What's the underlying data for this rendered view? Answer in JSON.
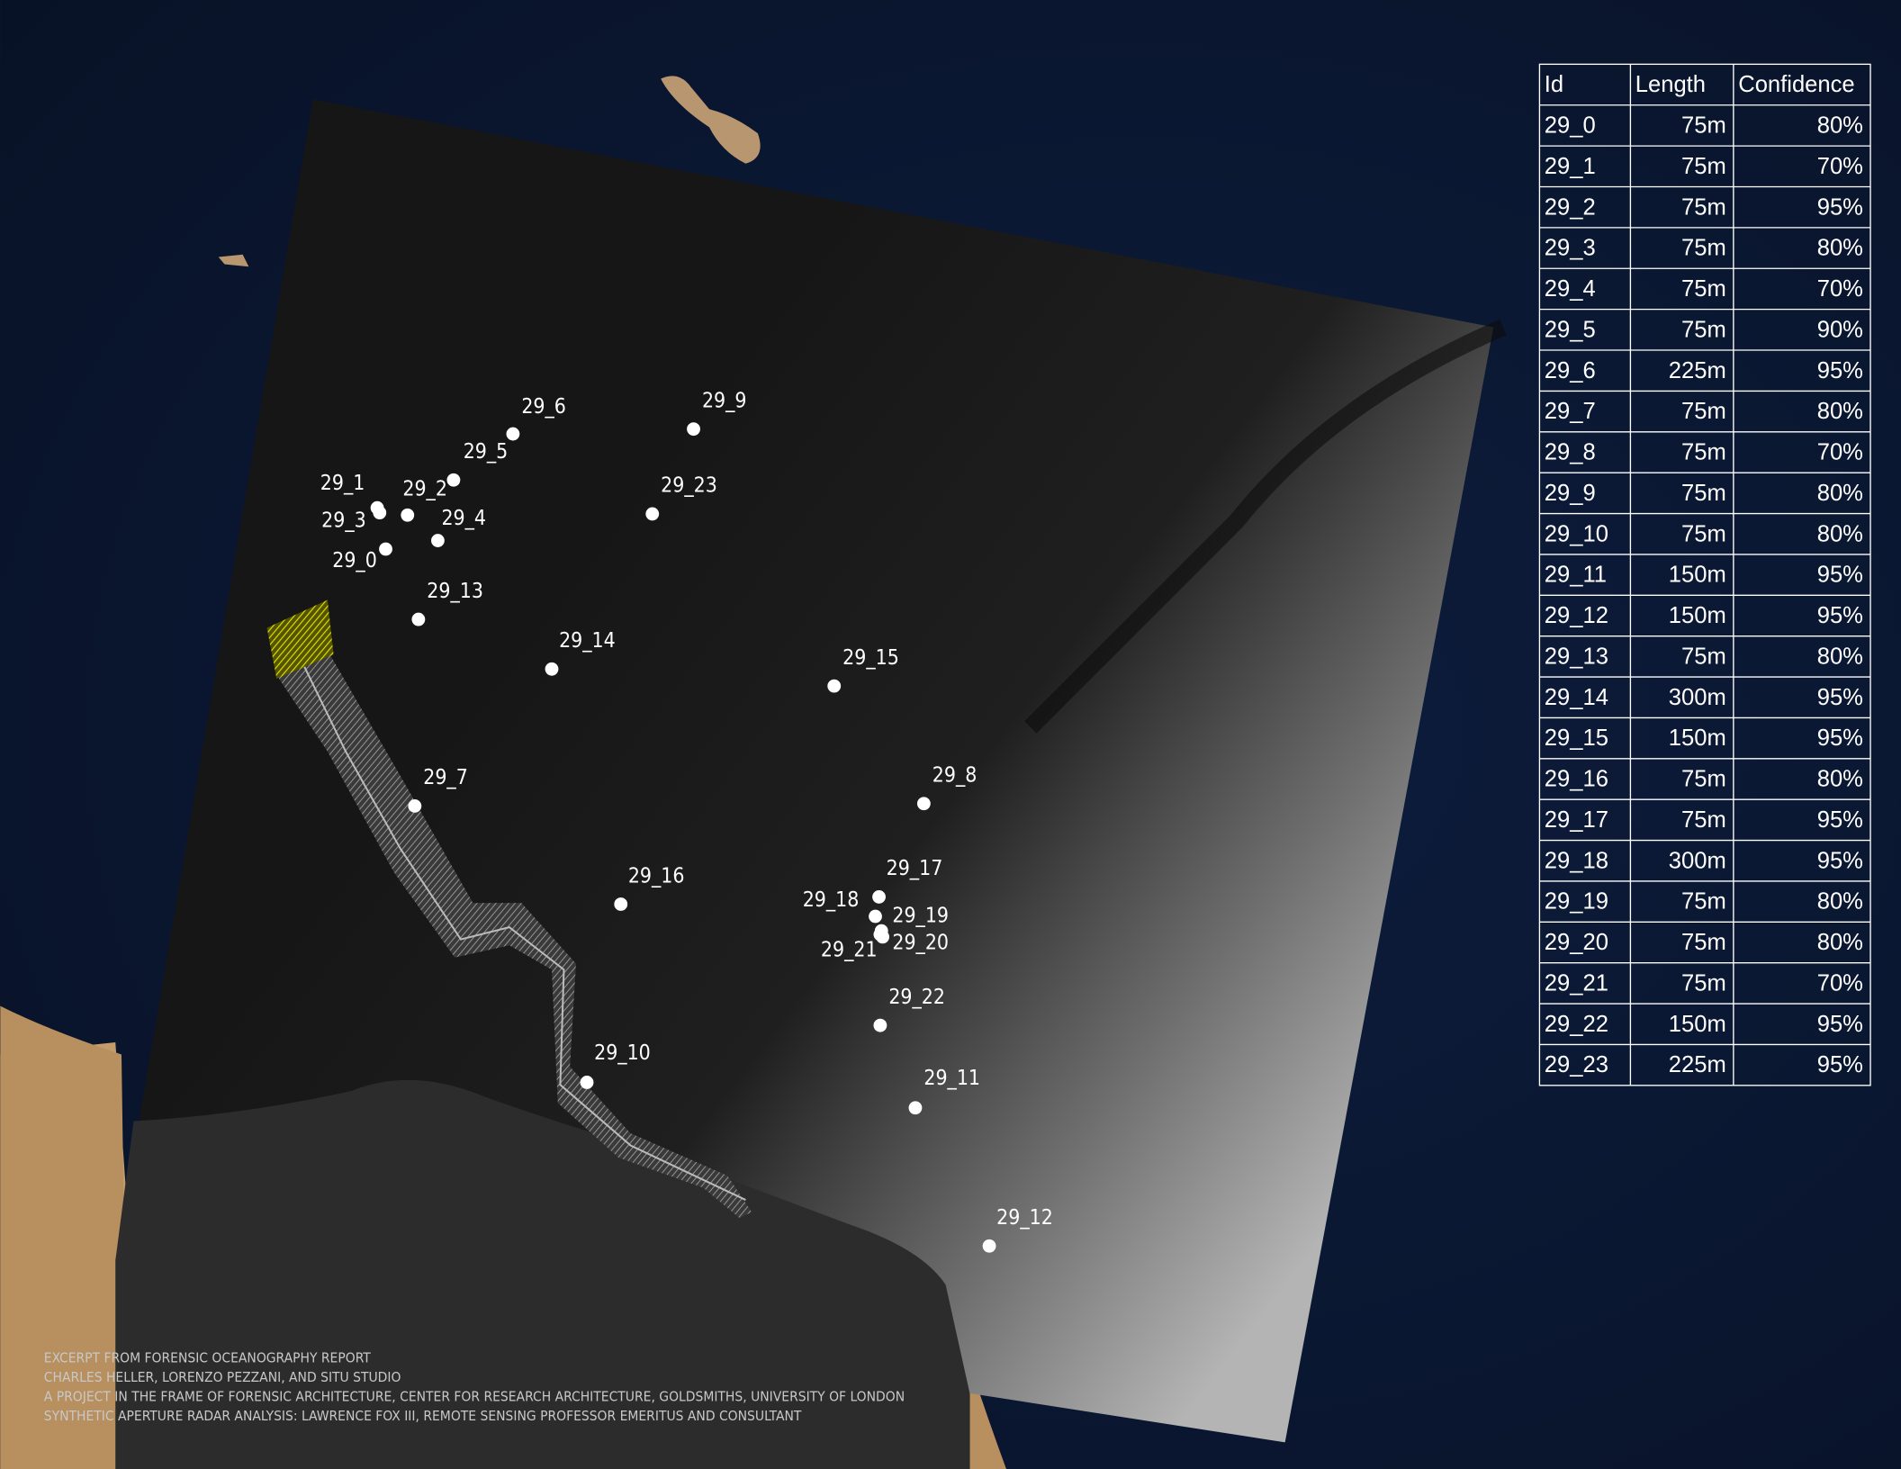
{
  "table": {
    "header": [
      "Id",
      "Length",
      "Confidence"
    ],
    "rows": [
      [
        "29_0",
        "75m",
        "80%"
      ],
      [
        "29_1",
        "75m",
        "70%"
      ],
      [
        "29_2",
        "75m",
        "95%"
      ],
      [
        "29_3",
        "75m",
        "80%"
      ],
      [
        "29_4",
        "75m",
        "70%"
      ],
      [
        "29_5",
        "75m",
        "90%"
      ],
      [
        "29_6",
        "225m",
        "95%"
      ],
      [
        "29_7",
        "75m",
        "80%"
      ],
      [
        "29_8",
        "75m",
        "70%"
      ],
      [
        "29_9",
        "75m",
        "80%"
      ],
      [
        "29_10",
        "75m",
        "80%"
      ],
      [
        "29_11",
        "150m",
        "95%"
      ],
      [
        "29_12",
        "150m",
        "95%"
      ],
      [
        "29_13",
        "75m",
        "80%"
      ],
      [
        "29_14",
        "300m",
        "95%"
      ],
      [
        "29_15",
        "150m",
        "95%"
      ],
      [
        "29_16",
        "75m",
        "80%"
      ],
      [
        "29_17",
        "75m",
        "95%"
      ],
      [
        "29_18",
        "300m",
        "95%"
      ],
      [
        "29_19",
        "75m",
        "80%"
      ],
      [
        "29_20",
        "75m",
        "80%"
      ],
      [
        "29_21",
        "75m",
        "70%"
      ],
      [
        "29_22",
        "150m",
        "95%"
      ],
      [
        "29_23",
        "225m",
        "95%"
      ]
    ]
  },
  "credits": [
    "EXCERPT FROM FORENSIC OCEANOGRAPHY REPORT",
    "CHARLES HELLER, LORENZO PEZZANI, AND SITU STUDIO",
    "A PROJECT IN THE FRAME OF FORENSIC ARCHITECTURE, CENTER FOR RESEARCH ARCHITECTURE, GOLDSMITHS, UNIVERSITY OF LONDON",
    "SYNTHETIC APERTURE RADAR ANALYSIS: LAWRENCE FOX III, REMOTE SENSING PROFESSOR EMERITUS AND CONSULTANT"
  ]
}
